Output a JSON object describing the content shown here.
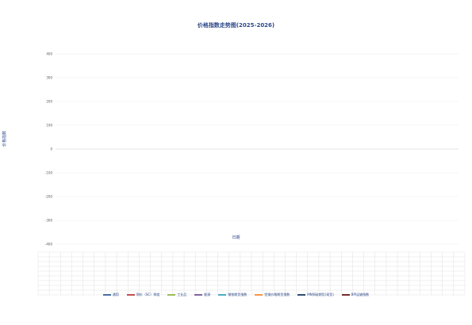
{
  "chart_data": {
    "type": "line",
    "title": "价格指数走势图(2025-2026)",
    "ylabel": "价格指数",
    "xlabel": "日期",
    "ylim": [
      -400,
      400
    ],
    "yticks": [
      -400,
      -300,
      -200,
      -100,
      0,
      100,
      200,
      300,
      400
    ],
    "grid": true,
    "legend_position": "bottom",
    "series": [
      {
        "name": "通用",
        "color": "#4a6fa5",
        "values": []
      },
      {
        "name": "铜价（SC）季度",
        "color": "#c0504d",
        "values": []
      },
      {
        "name": "工业品",
        "color": "#9bbb59",
        "values": []
      },
      {
        "name": "能源",
        "color": "#8064a2",
        "values": []
      },
      {
        "name": "钢铁期货指数",
        "color": "#4bacc6",
        "values": []
      },
      {
        "name": "铝钢价格期货指数",
        "color": "#f79646",
        "values": []
      },
      {
        "name": "MN铜硅期货(现货)",
        "color": "#2c4d75",
        "values": []
      },
      {
        "name": "BPI运输指数",
        "color": "#772c2a",
        "values": []
      }
    ]
  }
}
